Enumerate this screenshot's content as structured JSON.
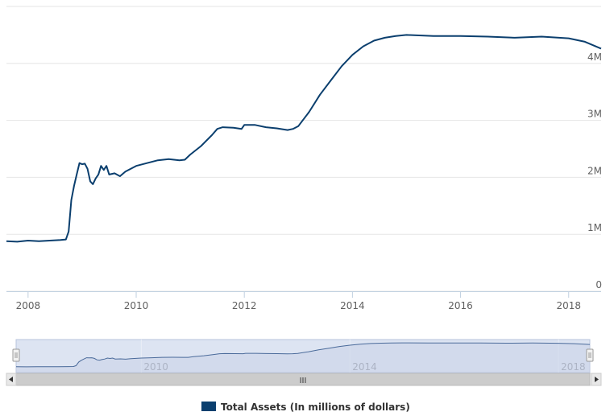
{
  "chart_data": {
    "type": "line",
    "title": "",
    "xlabel": "",
    "ylabel": "",
    "xlim": [
      2007.6,
      2018.6
    ],
    "ylim": [
      0,
      5000000
    ],
    "x_ticks": [
      2008,
      2010,
      2012,
      2014,
      2016,
      2018
    ],
    "x_tick_labels": [
      "2008",
      "2010",
      "2012",
      "2014",
      "2016",
      "2018"
    ],
    "y_ticks": [
      0,
      1000000,
      2000000,
      3000000,
      4000000
    ],
    "y_tick_labels": [
      "0",
      "1M",
      "2M",
      "3M",
      "4M"
    ],
    "y_axis_side": "right",
    "grid": "horizontal",
    "legend_position": "bottom",
    "series": [
      {
        "name": "Total Assets (In millions of dollars)",
        "color": "#0b3f6e",
        "points": [
          [
            2007.6,
            880000
          ],
          [
            2007.8,
            870000
          ],
          [
            2008.0,
            890000
          ],
          [
            2008.2,
            880000
          ],
          [
            2008.4,
            890000
          ],
          [
            2008.6,
            900000
          ],
          [
            2008.7,
            910000
          ],
          [
            2008.75,
            1050000
          ],
          [
            2008.8,
            1600000
          ],
          [
            2008.85,
            1850000
          ],
          [
            2008.9,
            2050000
          ],
          [
            2008.95,
            2250000
          ],
          [
            2009.0,
            2230000
          ],
          [
            2009.05,
            2240000
          ],
          [
            2009.1,
            2150000
          ],
          [
            2009.15,
            1930000
          ],
          [
            2009.2,
            1880000
          ],
          [
            2009.25,
            1980000
          ],
          [
            2009.3,
            2050000
          ],
          [
            2009.35,
            2200000
          ],
          [
            2009.4,
            2130000
          ],
          [
            2009.45,
            2200000
          ],
          [
            2009.5,
            2050000
          ],
          [
            2009.6,
            2070000
          ],
          [
            2009.7,
            2020000
          ],
          [
            2009.8,
            2100000
          ],
          [
            2009.9,
            2150000
          ],
          [
            2010.0,
            2200000
          ],
          [
            2010.2,
            2250000
          ],
          [
            2010.4,
            2300000
          ],
          [
            2010.6,
            2320000
          ],
          [
            2010.8,
            2300000
          ],
          [
            2010.9,
            2310000
          ],
          [
            2011.0,
            2400000
          ],
          [
            2011.2,
            2550000
          ],
          [
            2011.4,
            2740000
          ],
          [
            2011.5,
            2850000
          ],
          [
            2011.6,
            2880000
          ],
          [
            2011.8,
            2870000
          ],
          [
            2011.95,
            2850000
          ],
          [
            2012.0,
            2920000
          ],
          [
            2012.2,
            2920000
          ],
          [
            2012.4,
            2880000
          ],
          [
            2012.6,
            2860000
          ],
          [
            2012.8,
            2830000
          ],
          [
            2012.9,
            2850000
          ],
          [
            2013.0,
            2900000
          ],
          [
            2013.2,
            3150000
          ],
          [
            2013.4,
            3450000
          ],
          [
            2013.6,
            3700000
          ],
          [
            2013.8,
            3950000
          ],
          [
            2014.0,
            4150000
          ],
          [
            2014.2,
            4300000
          ],
          [
            2014.4,
            4400000
          ],
          [
            2014.6,
            4450000
          ],
          [
            2014.8,
            4480000
          ],
          [
            2015.0,
            4500000
          ],
          [
            2015.5,
            4480000
          ],
          [
            2016.0,
            4480000
          ],
          [
            2016.5,
            4470000
          ],
          [
            2017.0,
            4450000
          ],
          [
            2017.5,
            4470000
          ],
          [
            2018.0,
            4440000
          ],
          [
            2018.3,
            4380000
          ],
          [
            2018.6,
            4260000
          ]
        ]
      }
    ],
    "navigator": {
      "x_tick_labels": [
        "2010",
        "2014",
        "2018"
      ],
      "x_ticks": [
        2010,
        2014,
        2018
      ],
      "scrollbar_grip": "III"
    }
  },
  "legend": {
    "label": "Total Assets (In millions of dollars)",
    "color": "#0b3f6e"
  },
  "colors": {
    "line": "#0b3f6e",
    "grid": "#e6e6e6",
    "navigator_fill": "#c8d2e8",
    "navigator_mask": "#dde4f2",
    "scrollbar": "#e8e8e8"
  }
}
